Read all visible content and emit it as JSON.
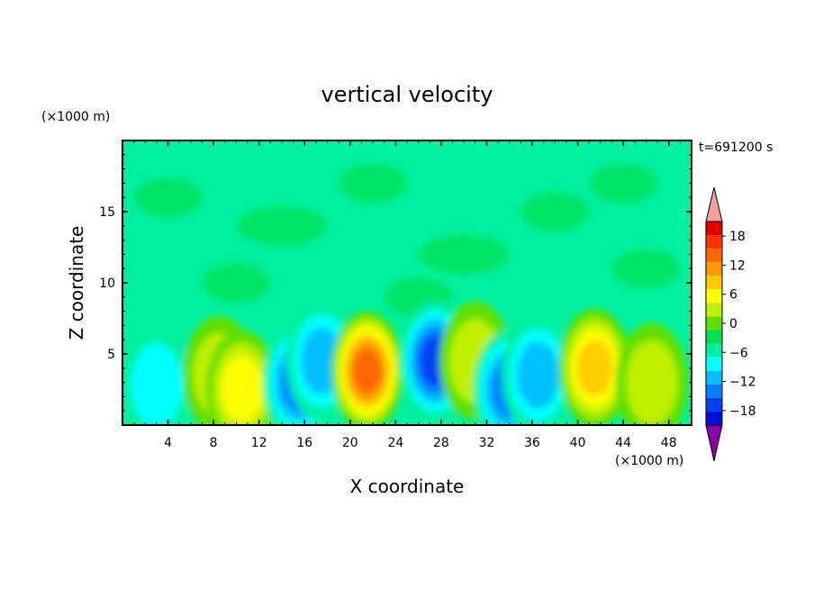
{
  "chart_data": {
    "type": "heatmap",
    "title": "vertical velocity",
    "xlabel": "X coordinate",
    "ylabel": "Z coordinate",
    "x_unit": "(×1000 m)",
    "y_unit": "(×1000 m)",
    "time_label": "t=691200 s",
    "xlim": [
      0,
      50
    ],
    "ylim": [
      0,
      20
    ],
    "x_ticks": [
      4,
      8,
      12,
      16,
      20,
      24,
      28,
      32,
      36,
      40,
      44,
      48
    ],
    "y_ticks": [
      5,
      10,
      15
    ],
    "colorbar": {
      "tick_values": [
        18,
        12,
        6,
        0,
        -6,
        -12,
        -18
      ],
      "levels": [
        -21,
        -18,
        -15,
        -12,
        -9,
        -6,
        -3,
        0,
        3,
        6,
        9,
        12,
        15,
        18,
        21
      ],
      "colors": [
        "#5a0fa8",
        "#2a00a0",
        "#0010d8",
        "#0040f0",
        "#0080ff",
        "#00bfff",
        "#00ffff",
        "#00f0a0",
        "#00e050",
        "#60e000",
        "#c0f000",
        "#ffff00",
        "#ffcc00",
        "#ff9900",
        "#ff6600",
        "#ff3300",
        "#e00000"
      ],
      "over_color": "#f4a0a0",
      "under_color": "#8a00a8"
    },
    "features": [
      {
        "x": 3,
        "z": 2.8,
        "w": -7
      },
      {
        "x": 8.5,
        "z": 3.5,
        "w": 6
      },
      {
        "x": 10.5,
        "z": 2.5,
        "w": 9
      },
      {
        "x": 15.5,
        "z": 3.0,
        "w": -12
      },
      {
        "x": 17.5,
        "z": 4.5,
        "w": -9
      },
      {
        "x": 21.5,
        "z": 3.8,
        "w": 18
      },
      {
        "x": 27.5,
        "z": 4.5,
        "w": -14
      },
      {
        "x": 31,
        "z": 4.5,
        "w": 6
      },
      {
        "x": 34,
        "z": 2.5,
        "w": -11
      },
      {
        "x": 36.5,
        "z": 3.5,
        "w": -9
      },
      {
        "x": 41.5,
        "z": 4.0,
        "w": 11
      },
      {
        "x": 46.5,
        "z": 3.0,
        "w": 5
      }
    ]
  }
}
